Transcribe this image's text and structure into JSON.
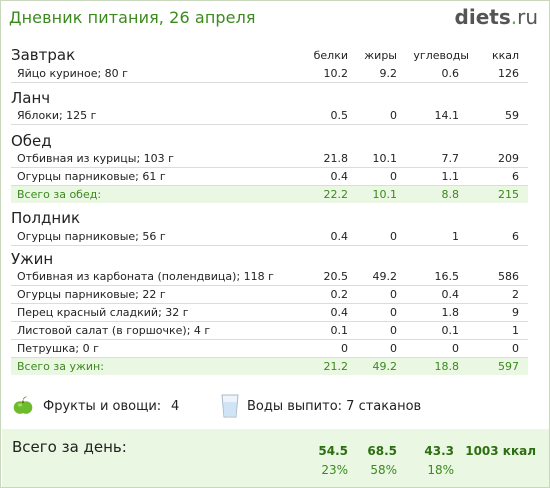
{
  "header": {
    "title": "Дневник питания, 26 апреля",
    "logo_main": "diets",
    "logo_dot": ".",
    "logo_tld": "ru"
  },
  "columns": {
    "protein": "белки",
    "fat": "жиры",
    "carbs": "углеводы",
    "kcal": "ккал"
  },
  "meals": {
    "breakfast": {
      "title": "Завтрак",
      "rows": [
        {
          "name": "Яйцо куриное; 80 г",
          "p": "10.2",
          "f": "9.2",
          "c": "0.6",
          "k": "126"
        }
      ]
    },
    "lunch": {
      "title": "Ланч",
      "rows": [
        {
          "name": "Яблоки; 125 г",
          "p": "0.5",
          "f": "0",
          "c": "14.1",
          "k": "59"
        }
      ]
    },
    "dinner": {
      "title": "Обед",
      "rows": [
        {
          "name": "Отбивная из курицы; 103 г",
          "p": "21.8",
          "f": "10.1",
          "c": "7.7",
          "k": "209"
        },
        {
          "name": "Огурцы парниковые; 61 г",
          "p": "0.4",
          "f": "0",
          "c": "1.1",
          "k": "6"
        }
      ],
      "total": {
        "name": "Всего за обед:",
        "p": "22.2",
        "f": "10.1",
        "c": "8.8",
        "k": "215"
      }
    },
    "snack": {
      "title": "Полдник",
      "rows": [
        {
          "name": "Огурцы парниковые; 56 г",
          "p": "0.4",
          "f": "0",
          "c": "1",
          "k": "6"
        }
      ]
    },
    "supper": {
      "title": "Ужин",
      "rows": [
        {
          "name": "Отбивная из карбоната (полендвица); 118 г",
          "p": "20.5",
          "f": "49.2",
          "c": "16.5",
          "k": "586"
        },
        {
          "name": "Огурцы парниковые; 22 г",
          "p": "0.2",
          "f": "0",
          "c": "0.4",
          "k": "2"
        },
        {
          "name": "Перец красный сладкий; 32 г",
          "p": "0.4",
          "f": "0",
          "c": "1.8",
          "k": "9"
        },
        {
          "name": "Листовой салат (в горшочке); 4 г",
          "p": "0.1",
          "f": "0",
          "c": "0.1",
          "k": "1"
        },
        {
          "name": "Петрушка; 0 г",
          "p": "0",
          "f": "0",
          "c": "0",
          "k": "0"
        }
      ],
      "total": {
        "name": "Всего за ужин:",
        "p": "21.2",
        "f": "49.2",
        "c": "18.8",
        "k": "597"
      }
    }
  },
  "extras": {
    "fruit_label": "Фрукты и овощи:",
    "fruit_count": "4",
    "water_label": "Воды выпито: 7 стаканов",
    "icons": [
      "apple-icon",
      "water-glass-icon"
    ]
  },
  "day_total": {
    "label": "Всего за день:",
    "p": "54.5",
    "f": "68.5",
    "c": "43.3",
    "kcal": "1003 ккал",
    "p_pct": "23%",
    "f_pct": "58%",
    "c_pct": "18%"
  },
  "colors": {
    "accent_green": "#3c8a1e",
    "total_bg": "#e9f7e3"
  }
}
